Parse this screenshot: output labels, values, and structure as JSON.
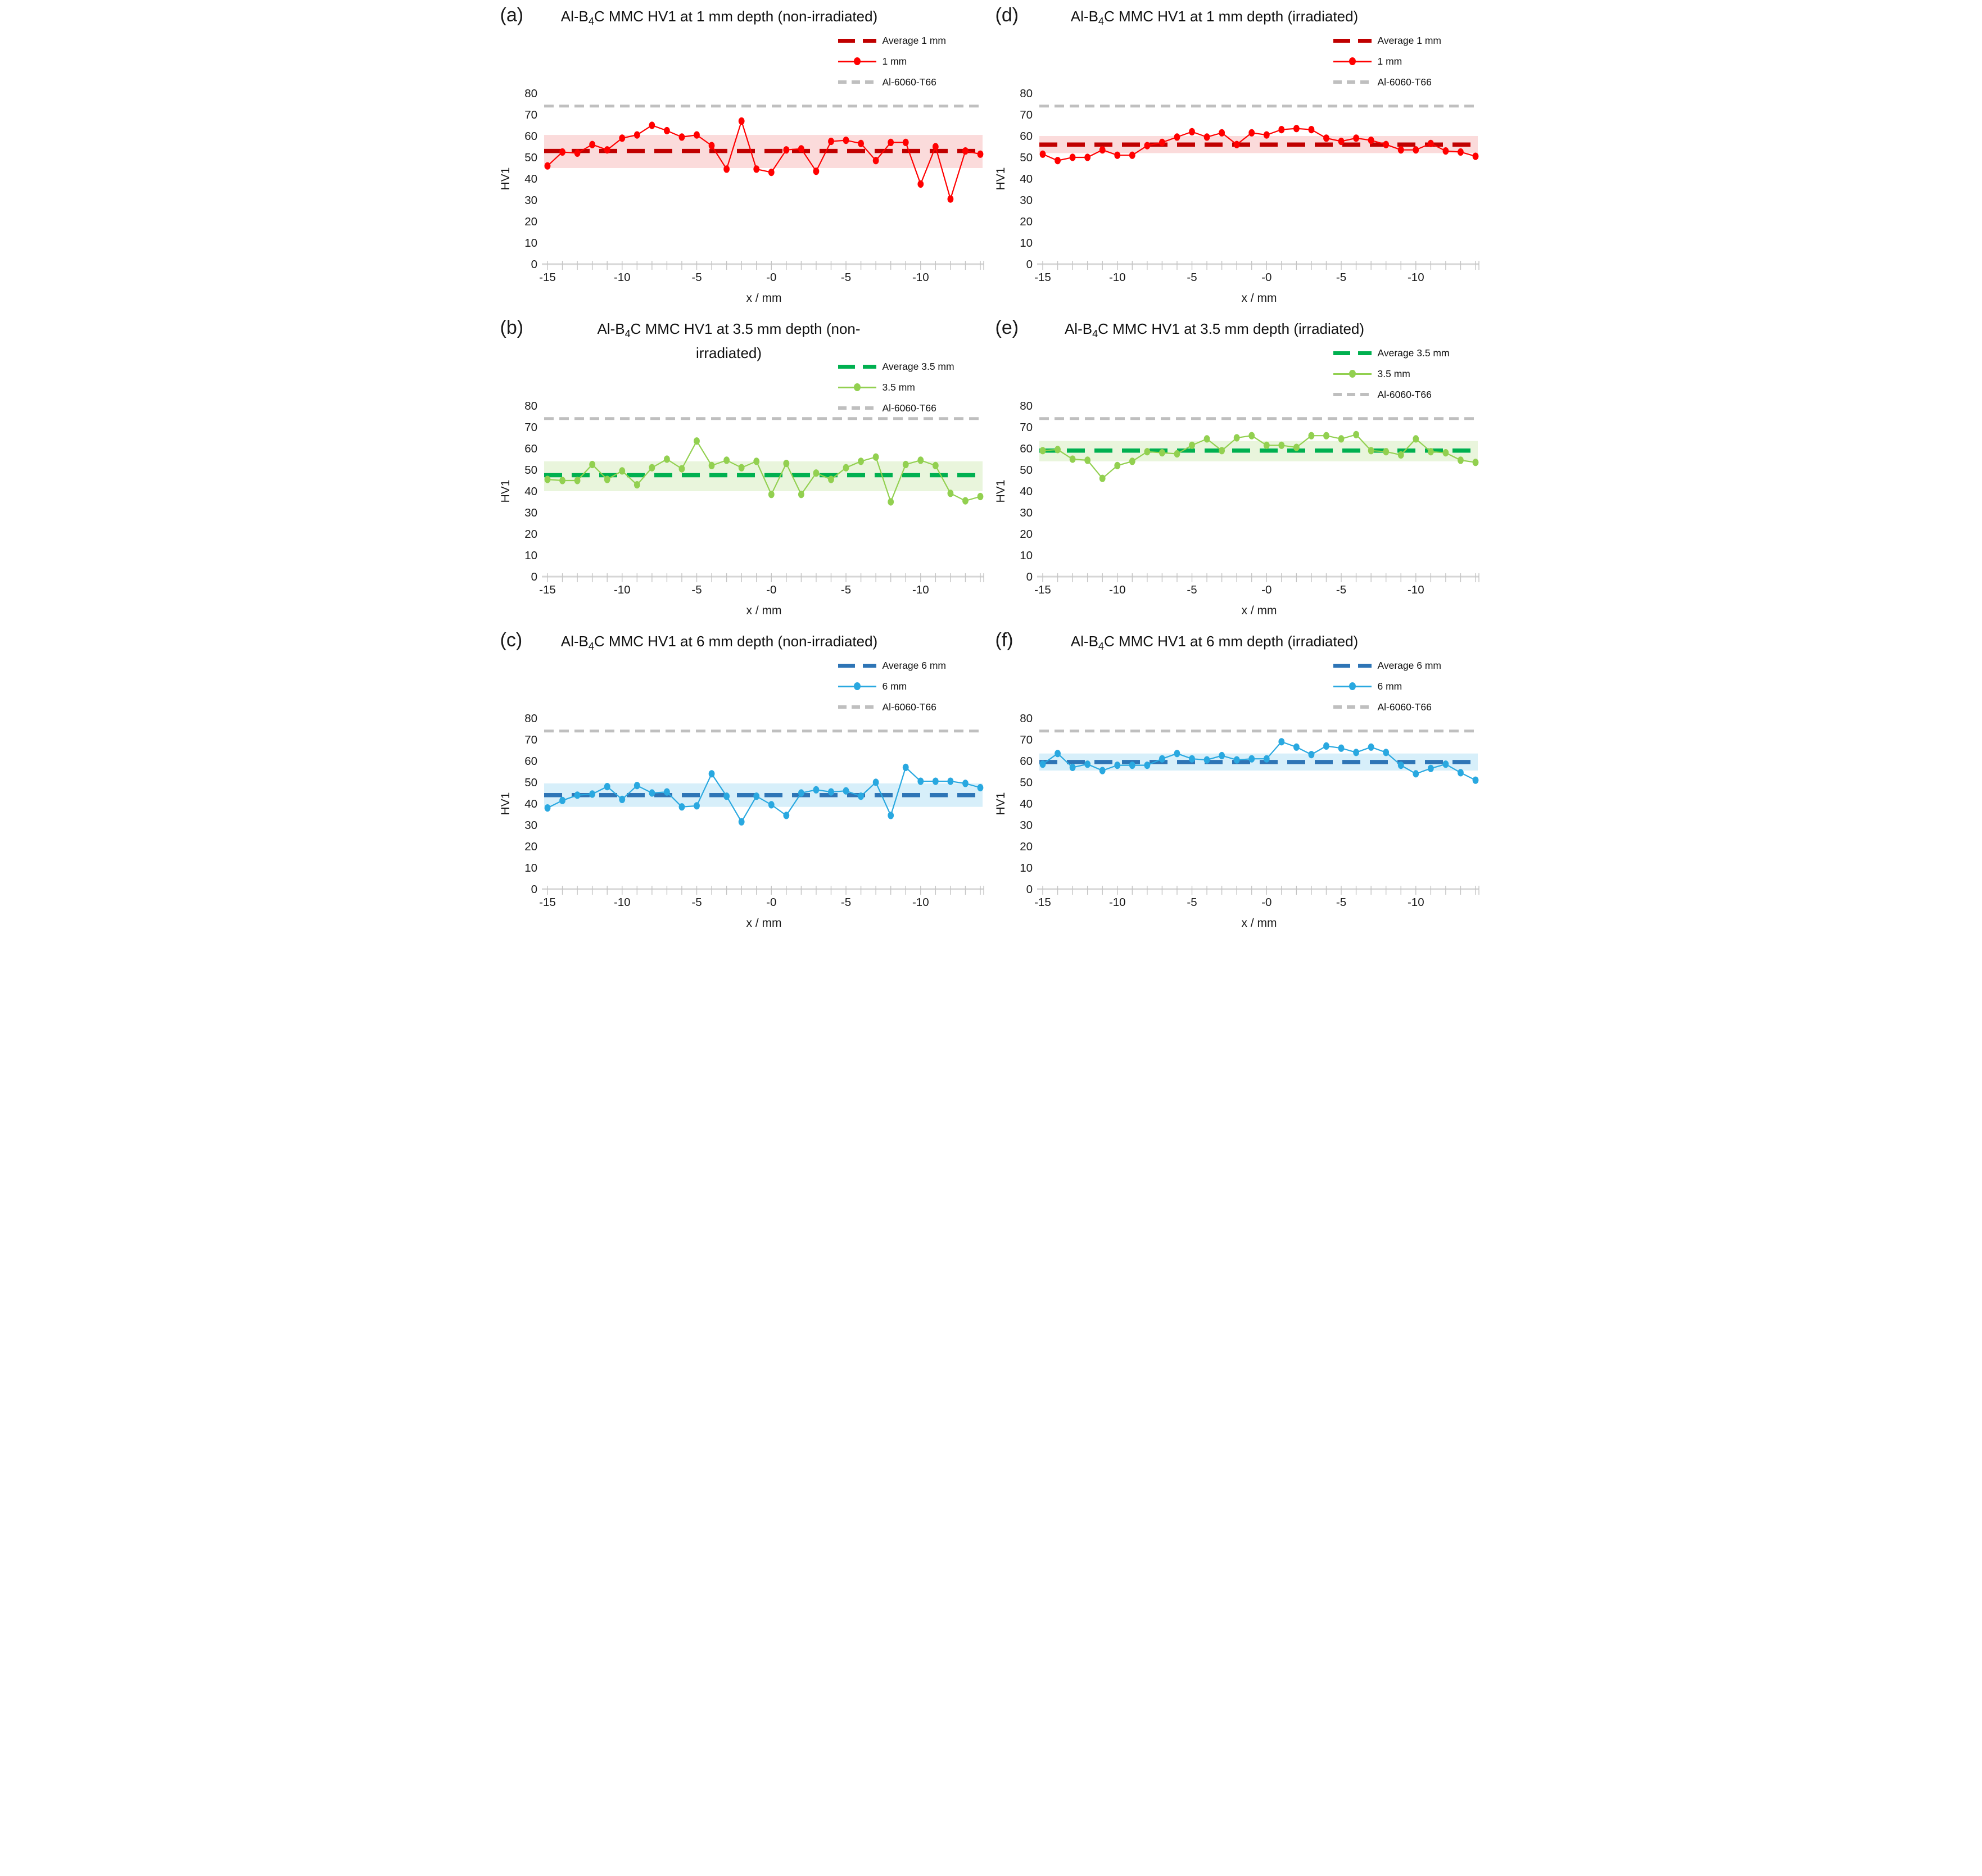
{
  "axes": {
    "y_ticks": [
      0,
      10,
      20,
      30,
      40,
      50,
      60,
      70,
      80
    ],
    "y_max": 80,
    "x_tick_labels": [
      "-15",
      "-10",
      "-5",
      "-0",
      "-5",
      "-10"
    ],
    "x_label_every_n_points": 5,
    "x_axis_title": "x / mm",
    "y_axis_title": "HV1",
    "grid": false,
    "legend_position": "top-right",
    "reference": {
      "label": "Al-6060-T66",
      "value": 74,
      "color": "#BFBFBF"
    }
  },
  "chart_data": [
    {
      "type": "line",
      "letter": "(a)",
      "title": {
        "pre": "Al-B",
        "sub": "4",
        "post": "C MMC HV1 at 1 mm depth (non-irradiated)"
      },
      "legend": {
        "avg": "Average 1 mm",
        "series": "1 mm",
        "ref": "Al-6060-T66"
      },
      "colors": {
        "series": "#FF0000",
        "avg": "#C00000",
        "band": "#FBDBDB"
      },
      "ylabel": "HV1",
      "xlabel": "x / mm",
      "ylim": [
        0,
        80
      ],
      "average": 53,
      "band": [
        45,
        60.5
      ],
      "reference_value": 74,
      "values": [
        46,
        52.5,
        52,
        56,
        53.5,
        59,
        60.5,
        65,
        62.5,
        59.5,
        60.5,
        55.5,
        44.5,
        67,
        44.5,
        43,
        53.5,
        54,
        43.5,
        57.5,
        58,
        56.5,
        48.5,
        57,
        57,
        37.5,
        55,
        30.5,
        53,
        51.5
      ]
    },
    {
      "type": "line",
      "letter": "(d)",
      "title": {
        "pre": "Al-B",
        "sub": "4",
        "post": "C MMC HV1 at 1 mm depth (irradiated)"
      },
      "legend": {
        "avg": "Average 1 mm",
        "series": "1 mm",
        "ref": "Al-6060-T66"
      },
      "colors": {
        "series": "#FF0000",
        "avg": "#C00000",
        "band": "#FBDBDB"
      },
      "ylabel": "HV1",
      "xlabel": "x / mm",
      "ylim": [
        0,
        80
      ],
      "average": 56,
      "band": [
        52,
        60
      ],
      "reference_value": 74,
      "values": [
        51.5,
        48.5,
        50,
        50,
        53.5,
        51,
        51,
        55.5,
        57,
        59.5,
        62,
        59.5,
        61.5,
        56,
        61.5,
        60.5,
        63,
        63.5,
        63,
        59,
        57.5,
        59,
        58,
        56,
        53.5,
        53.5,
        56.5,
        53,
        52.5,
        50.5
      ]
    },
    {
      "type": "line",
      "letter": "(b)",
      "title": {
        "pre": "Al-B",
        "sub": "4",
        "post": "C MMC HV1 at 3.5 mm depth (non-irradiated)"
      },
      "legend": {
        "avg": "Average 3.5 mm",
        "series": "3.5 mm",
        "ref": "Al-6060-T66"
      },
      "colors": {
        "series": "#92D050",
        "avg": "#00B050",
        "band": "#E9F5DC"
      },
      "ylabel": "HV1",
      "xlabel": "x / mm",
      "ylim": [
        0,
        80
      ],
      "average": 47.5,
      "band": [
        40,
        54
      ],
      "reference_value": 74,
      "values": [
        45.5,
        45,
        45,
        52.5,
        45.5,
        49.5,
        43,
        51,
        55,
        50.5,
        63.5,
        52,
        54.5,
        51,
        54,
        38.5,
        53,
        38.5,
        48.5,
        45.5,
        51,
        54,
        56,
        35,
        52.5,
        54.5,
        52,
        39,
        35.5,
        37.5
      ]
    },
    {
      "type": "line",
      "letter": "(e)",
      "title": {
        "pre": "Al-B",
        "sub": "4",
        "post": "C MMC HV1 at 3.5 mm depth (irradiated)"
      },
      "legend": {
        "avg": "Average 3.5 mm",
        "series": "3.5 mm",
        "ref": "Al-6060-T66"
      },
      "colors": {
        "series": "#92D050",
        "avg": "#00B050",
        "band": "#E9F5DC"
      },
      "ylabel": "HV1",
      "xlabel": "x / mm",
      "ylim": [
        0,
        80
      ],
      "average": 59,
      "band": [
        54,
        63.5
      ],
      "reference_value": 74,
      "values": [
        59,
        59.5,
        55,
        54.5,
        46,
        52,
        54,
        58.5,
        58,
        57.5,
        61.5,
        64.5,
        59,
        65,
        66,
        61.5,
        61.5,
        60.5,
        66,
        66,
        64.5,
        66.5,
        59,
        58.5,
        57,
        64.5,
        58.5,
        58,
        54.5,
        53.5
      ]
    },
    {
      "type": "line",
      "letter": "(c)",
      "title": {
        "pre": "Al-B",
        "sub": "4",
        "post": "C MMC HV1 at 6 mm depth (non-irradiated)"
      },
      "legend": {
        "avg": "Average 6 mm",
        "series": "6 mm",
        "ref": "Al-6060-T66"
      },
      "colors": {
        "series": "#29A8E0",
        "avg": "#2E75B6",
        "band": "#D7EFFA"
      },
      "ylabel": "HV1",
      "xlabel": "x / mm",
      "ylim": [
        0,
        80
      ],
      "average": 44,
      "band": [
        38.5,
        49.5
      ],
      "reference_value": 74,
      "values": [
        38,
        41.5,
        44,
        44.5,
        48,
        42,
        48.5,
        45,
        45.5,
        38.5,
        39,
        54,
        43.5,
        31.5,
        43.5,
        39.5,
        34.5,
        45,
        46.5,
        45.5,
        46,
        43.5,
        50,
        34.5,
        57,
        50.5,
        50.5,
        50.5,
        49.5,
        47.5
      ]
    },
    {
      "type": "line",
      "letter": "(f)",
      "title": {
        "pre": "Al-B",
        "sub": "4",
        "post": "C MMC HV1 at 6 mm depth (irradiated)"
      },
      "legend": {
        "avg": "Average 6 mm",
        "series": "6 mm",
        "ref": "Al-6060-T66"
      },
      "colors": {
        "series": "#29A8E0",
        "avg": "#2E75B6",
        "band": "#D7EFFA"
      },
      "ylabel": "HV1",
      "xlabel": "x / mm",
      "ylim": [
        0,
        80
      ],
      "average": 59.5,
      "band": [
        55.5,
        63.5
      ],
      "reference_value": 74,
      "values": [
        58.5,
        63.5,
        57,
        58.5,
        55.5,
        58,
        58,
        58,
        61,
        63.5,
        61,
        60.5,
        62.5,
        60.5,
        61,
        61,
        69,
        66.5,
        63,
        67,
        66,
        64,
        66.5,
        64,
        58,
        54,
        56.5,
        58.5,
        54.5,
        51
      ]
    }
  ]
}
